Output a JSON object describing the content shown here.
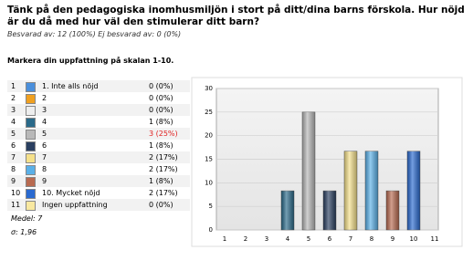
{
  "header": {
    "title": "Tänk på den pedagogiska inomhusmiljön i stort på ditt/dina barns förskola. Hur nöjd är du då med hur väl den stimulerar ditt barn?",
    "answered": "Besvarad av: 12 (100%) Ej besvarad av: 0 (0%)",
    "question": "Markera din uppfattning på skalan 1-10."
  },
  "table": {
    "rows": [
      [
        "1",
        "1. Inte alls nöjd",
        "0 (0%)"
      ],
      [
        "2",
        "2",
        "0 (0%)"
      ],
      [
        "3",
        "3",
        "0 (0%)"
      ],
      [
        "4",
        "4",
        "1 (8%)"
      ],
      [
        "5",
        "5",
        "3 (25%)"
      ],
      [
        "6",
        "6",
        "1 (8%)"
      ],
      [
        "7",
        "7",
        "2 (17%)"
      ],
      [
        "8",
        "8",
        "2 (17%)"
      ],
      [
        "9",
        "9",
        "1 (8%)"
      ],
      [
        "10",
        "10. Mycket nöjd",
        "2 (17%)"
      ],
      [
        "11",
        "Ingen uppfattning",
        "0 (0%)"
      ]
    ],
    "highlighted_row": 4,
    "highlight_color": "#e02020"
  },
  "stats": {
    "mean": "Medel: 7",
    "sigma": "σ: 1,96"
  },
  "chart_data": {
    "type": "bar",
    "categories": [
      "1",
      "2",
      "3",
      "4",
      "5",
      "6",
      "7",
      "8",
      "9",
      "10",
      "11"
    ],
    "values": [
      0,
      0,
      0,
      8.3,
      25,
      8.3,
      16.7,
      16.7,
      8.3,
      16.7,
      0
    ],
    "colors": [
      "#4a8fdc",
      "#f0a020",
      "#eeeeee",
      "#2a6a8a",
      "#b8b8b8",
      "#2a3f60",
      "#f5e08a",
      "#5ab0e8",
      "#b86a50",
      "#2a6ad0",
      "#f8e8a0"
    ],
    "ylim": [
      0,
      30
    ],
    "yticks": [
      0,
      5,
      10,
      15,
      20,
      25,
      30
    ],
    "grid": true
  }
}
